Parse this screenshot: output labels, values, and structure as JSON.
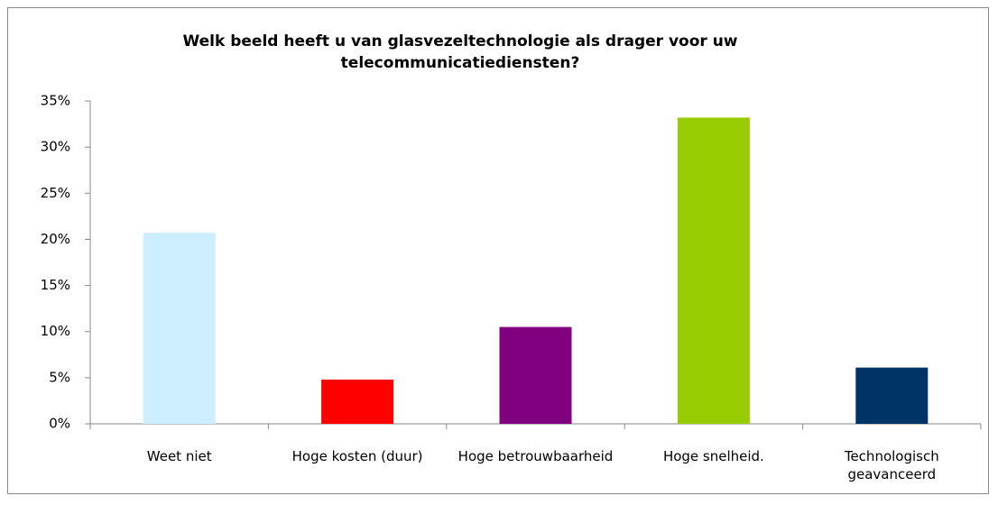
{
  "chart_data": {
    "type": "bar",
    "title": "Welk beeld heeft u van glasvezeltechnologie als drager voor uw telecommunicatiediensten?",
    "categories": [
      "Weet niet",
      "Hoge kosten (duur)",
      "Hoge betrouwbaarheid",
      "Hoge snelheid.",
      "Technologisch geavanceerd"
    ],
    "values": [
      20.7,
      4.8,
      10.5,
      33.2,
      6.1
    ],
    "colors": [
      "#cceeff",
      "#ff0000",
      "#800080",
      "#99cc00",
      "#003366"
    ],
    "ylim": [
      0,
      35
    ],
    "yticks": [
      {
        "value": 0,
        "label": "0%"
      },
      {
        "value": 5,
        "label": "5%"
      },
      {
        "value": 10,
        "label": "10%"
      },
      {
        "value": 15,
        "label": "15%"
      },
      {
        "value": 20,
        "label": "20%"
      },
      {
        "value": 25,
        "label": "25%"
      },
      {
        "value": 30,
        "label": "30%"
      },
      {
        "value": 35,
        "label": "35%"
      }
    ],
    "grid": false
  }
}
